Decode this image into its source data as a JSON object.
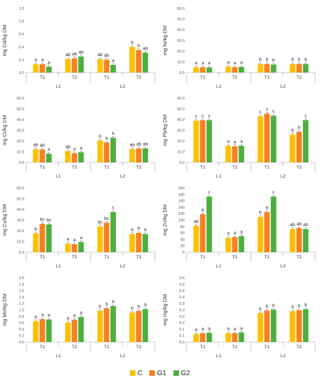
{
  "colors": {
    "C": "#FFC000",
    "G1": "#F58220",
    "G2": "#4CAF3E"
  },
  "legend": [
    {
      "key": "C",
      "label": "C"
    },
    {
      "key": "G1",
      "label": "G1"
    },
    {
      "key": "G2",
      "label": "G2"
    }
  ],
  "chart_data": [
    {
      "type": "bar",
      "ylabel": "mg Cd/kg DM",
      "ylim": [
        0,
        1.0
      ],
      "yticks": [
        "0.0",
        "0.2",
        "0.4",
        "0.6",
        "0.8",
        "1.0"
      ],
      "categories": [
        "T1",
        "T2",
        "T1",
        "T2"
      ],
      "groups": [
        "L1",
        "L2"
      ],
      "series": [
        {
          "name": "C",
          "values": [
            0.13,
            0.21,
            0.21,
            0.4
          ]
        },
        {
          "name": "G1",
          "values": [
            0.13,
            0.22,
            0.2,
            0.35
          ]
        },
        {
          "name": "G2",
          "values": [
            0.09,
            0.25,
            0.12,
            0.31
          ]
        }
      ],
      "letters": [
        [
          "a",
          "a",
          "a"
        ],
        [
          "ab",
          "ab",
          "ab"
        ],
        [
          "ab",
          "ab",
          "a"
        ],
        [
          "b",
          "b",
          "ab"
        ]
      ]
    },
    {
      "type": "bar",
      "ylabel": "mg Ni/kg DM",
      "ylim": [
        0,
        60.0
      ],
      "yticks": [
        "0.0",
        "10.0",
        "20.0",
        "30.0",
        "40.0",
        "50.0",
        "60.0"
      ],
      "categories": [
        "T1",
        "T2",
        "T1",
        "T2"
      ],
      "groups": [
        "L1",
        "L2"
      ],
      "series": [
        {
          "name": "C",
          "values": [
            5.0,
            5.5,
            8.0,
            8.0
          ]
        },
        {
          "name": "G1",
          "values": [
            5.0,
            5.0,
            8.0,
            8.0
          ]
        },
        {
          "name": "G2",
          "values": [
            4.8,
            5.2,
            7.5,
            8.0
          ]
        }
      ],
      "letters": [
        [
          "a",
          "a",
          "a"
        ],
        [
          "a",
          "a",
          "a"
        ],
        [
          "b",
          "b",
          "b"
        ],
        [
          "b",
          "b",
          "b"
        ]
      ]
    },
    {
      "type": "bar",
      "ylabel": "mg Cr/kg DM",
      "ylim": [
        0,
        60.0
      ],
      "yticks": [
        "0.0",
        "10.0",
        "20.0",
        "30.0",
        "40.0",
        "50.0",
        "60.0"
      ],
      "categories": [
        "T1",
        "T2",
        "T1",
        "T2"
      ],
      "groups": [
        "L1",
        "L2"
      ],
      "series": [
        {
          "name": "C",
          "values": [
            12.5,
            10.5,
            20.5,
            12.5
          ]
        },
        {
          "name": "G1",
          "values": [
            12.0,
            8.5,
            18.5,
            13.0
          ]
        },
        {
          "name": "G2",
          "values": [
            8.0,
            9.5,
            23.0,
            13.0
          ]
        }
      ],
      "letters": [
        [
          "ab",
          "ab",
          "a"
        ],
        [
          "ab",
          "a",
          "a"
        ],
        [
          "b",
          "b",
          "b"
        ],
        [
          "ab",
          "ab",
          "ab"
        ]
      ]
    },
    {
      "type": "bar",
      "ylabel": "mg Pb/kg DM",
      "ylim": [
        0,
        60.0
      ],
      "yticks": [
        "0.0",
        "10.0",
        "20.0",
        "30.0",
        "40.0",
        "50.0",
        "60.0"
      ],
      "categories": [
        "T1",
        "T2",
        "T1",
        "T2"
      ],
      "groups": [
        "L1",
        "L2"
      ],
      "series": [
        {
          "name": "C",
          "values": [
            39.0,
            15.5,
            43.0,
            26.0
          ]
        },
        {
          "name": "G1",
          "values": [
            39.5,
            15.0,
            45.5,
            28.5
          ]
        },
        {
          "name": "G2",
          "values": [
            39.5,
            15.5,
            43.5,
            39.5
          ]
        }
      ],
      "letters": [
        [
          "c",
          "c",
          "c"
        ],
        [
          "a",
          "a",
          "a"
        ],
        [
          "c",
          "c",
          "c"
        ],
        [
          "b",
          "b",
          "c"
        ]
      ]
    },
    {
      "type": "bar",
      "ylabel": "mg Cu/kg DM",
      "ylim": [
        0,
        60.0
      ],
      "yticks": [
        "0.0",
        "10.0",
        "20.0",
        "30.0",
        "40.0",
        "50.0",
        "60.0"
      ],
      "categories": [
        "T1",
        "T2",
        "T1",
        "T2"
      ],
      "groups": [
        "L1",
        "L2"
      ],
      "series": [
        {
          "name": "C",
          "values": [
            17.5,
            8.0,
            24.0,
            17.0
          ]
        },
        {
          "name": "G1",
          "values": [
            26.5,
            7.5,
            27.5,
            18.0
          ]
        },
        {
          "name": "G2",
          "values": [
            26.0,
            9.5,
            37.5,
            17.0
          ]
        }
      ],
      "letters": [
        [
          "b",
          "bc",
          "bc"
        ],
        [
          "a",
          "a",
          "a"
        ],
        [
          "bc",
          "bc",
          "c"
        ],
        [
          "b",
          "b",
          "b"
        ]
      ]
    },
    {
      "type": "bar",
      "ylabel": "mg Zn/kg DM",
      "ylim": [
        0,
        200
      ],
      "yticks": [
        "0",
        "20",
        "40",
        "60",
        "80",
        "100",
        "120",
        "140",
        "160",
        "180",
        "200"
      ],
      "categories": [
        "T1",
        "T2",
        "T1",
        "T2"
      ],
      "groups": [
        "L1",
        "L2"
      ],
      "series": [
        {
          "name": "C",
          "values": [
            82,
            45,
            110,
            72
          ]
        },
        {
          "name": "G1",
          "values": [
            118,
            47,
            125,
            75
          ]
        },
        {
          "name": "G2",
          "values": [
            173,
            50,
            173,
            72
          ]
        }
      ],
      "letters": [
        [
          "ab",
          "b",
          "c"
        ],
        [
          "a",
          "a",
          "a"
        ],
        [
          "b",
          "b",
          "c"
        ],
        [
          "ab",
          "ab",
          "ab"
        ]
      ]
    },
    {
      "type": "bar",
      "ylabel": "mg Mo/kg DM",
      "ylim": [
        0,
        2.0
      ],
      "yticks": [
        "0.0",
        "0.2",
        "0.4",
        "0.6",
        "0.8",
        "1.0",
        "1.2",
        "1.4",
        "1.6",
        "1.8",
        "2.0"
      ],
      "categories": [
        "T1",
        "T2",
        "T1",
        "T2"
      ],
      "groups": [
        "L1",
        "L2"
      ],
      "series": [
        {
          "name": "C",
          "values": [
            0.65,
            0.61,
            0.97,
            0.92
          ]
        },
        {
          "name": "G1",
          "values": [
            0.71,
            0.69,
            1.05,
            0.97
          ]
        },
        {
          "name": "G2",
          "values": [
            0.7,
            0.78,
            1.12,
            1.02
          ]
        }
      ],
      "letters": [
        [
          "a",
          "a",
          "a"
        ],
        [
          "a",
          "a",
          "a"
        ],
        [
          "b",
          "b",
          "b"
        ],
        [
          "b",
          "b",
          "b"
        ]
      ]
    },
    {
      "type": "bar",
      "ylabel": "mg Hg/kg DM",
      "ylim": [
        0,
        0.5
      ],
      "yticks": [
        "0.0",
        "0.1",
        "0.1",
        "0.2",
        "0.2",
        "0.3",
        "0.3",
        "0.4",
        "0.4",
        "0.5",
        "0.5"
      ],
      "categories": [
        "T1",
        "T2",
        "T1",
        "T2"
      ],
      "groups": [
        "L1",
        "L2"
      ],
      "series": [
        {
          "name": "C",
          "values": [
            0.063,
            0.07,
            0.225,
            0.24
          ]
        },
        {
          "name": "G1",
          "values": [
            0.068,
            0.069,
            0.245,
            0.248
          ]
        },
        {
          "name": "G2",
          "values": [
            0.071,
            0.074,
            0.252,
            0.255
          ]
        }
      ],
      "letters": [
        [
          "a",
          "a",
          "a"
        ],
        [
          "a",
          "a",
          "a"
        ],
        [
          "b",
          "b",
          "b"
        ],
        [
          "b",
          "b",
          "b"
        ]
      ]
    }
  ]
}
